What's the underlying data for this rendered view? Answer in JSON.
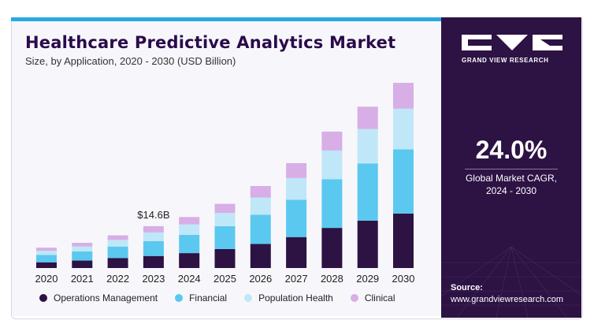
{
  "header": {
    "title": "Healthcare Predictive Analytics Market",
    "subtitle": "Size, by Application, 2020 - 2030 (USD Billion)"
  },
  "sidebar": {
    "brand": "GRAND VIEW RESEARCH",
    "cagr_value": "24.0%",
    "cagr_label_line1": "Global Market CAGR,",
    "cagr_label_line2": "2024 - 2030",
    "source_label": "Source:",
    "source_url": "www.grandviewresearch.com"
  },
  "colors": {
    "operations": "#2d1244",
    "financial": "#5bc8f0",
    "population": "#bfe7f7",
    "clinical": "#d7aee6",
    "panel": "#2d1244",
    "accent": "#29a9e1"
  },
  "chart_data": {
    "type": "bar",
    "stacked": true,
    "categories": [
      "2020",
      "2021",
      "2022",
      "2023",
      "2024",
      "2025",
      "2026",
      "2027",
      "2028",
      "2029",
      "2030"
    ],
    "series": [
      {
        "name": "Operations Management",
        "values": [
          2.0,
          2.6,
          3.5,
          4.2,
          5.2,
          6.6,
          8.4,
          10.8,
          14.0,
          16.5,
          19.0
        ]
      },
      {
        "name": "Financial",
        "values": [
          2.6,
          3.2,
          4.0,
          5.2,
          6.4,
          8.0,
          10.2,
          13.0,
          17.0,
          20.0,
          22.4
        ]
      },
      {
        "name": "Population Health",
        "values": [
          1.4,
          1.7,
          2.3,
          3.0,
          3.6,
          4.6,
          6.0,
          7.6,
          10.0,
          12.0,
          14.2
        ]
      },
      {
        "name": "Clinical",
        "values": [
          1.1,
          1.3,
          1.6,
          2.2,
          2.6,
          3.2,
          4.0,
          5.2,
          6.6,
          7.8,
          9.0
        ]
      }
    ],
    "annotation": {
      "category": "2023",
      "label": "$14.6B"
    },
    "ylim": [
      0,
      66
    ],
    "legend_position": "bottom"
  }
}
